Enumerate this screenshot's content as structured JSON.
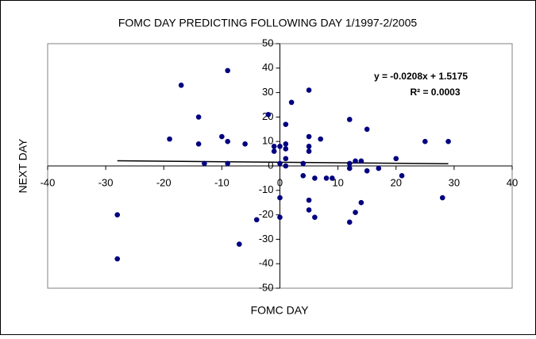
{
  "chart_data": {
    "type": "scatter",
    "title": "FOMC DAY PREDICTING FOLLOWING DAY 1/1997-2/2005",
    "x_label": "FOMC DAY",
    "y_label": "NEXT DAY",
    "annotations": [
      "y = -0.0208x + 1.5175",
      "R² = 0.0003"
    ],
    "color": "#000080",
    "xlim": [
      -40,
      40
    ],
    "xticks": [
      -40,
      -30,
      -20,
      -10,
      0,
      10,
      20,
      30,
      40
    ],
    "ylim": [
      -50,
      50
    ],
    "yticks": [
      -50,
      -40,
      -30,
      -20,
      -10,
      0,
      10,
      20,
      30,
      40,
      50
    ],
    "x": [
      -17,
      -9,
      -14,
      -19,
      -14,
      -13,
      -10,
      -9,
      -9,
      -6,
      -2,
      2,
      5,
      1,
      5,
      7,
      5,
      5,
      -1,
      -1,
      0,
      1,
      1,
      1,
      1,
      0,
      4,
      12,
      15,
      13,
      14,
      12,
      12,
      15,
      17,
      20,
      25,
      29,
      21,
      28,
      8,
      9,
      6,
      4,
      0,
      0,
      5,
      5,
      6,
      -4,
      -7,
      12,
      13,
      14,
      -28,
      -28
    ],
    "y": [
      33,
      39,
      20,
      11,
      9,
      1,
      12,
      10,
      1,
      9,
      21,
      26,
      31,
      17,
      12,
      11,
      8,
      6,
      8,
      6,
      8,
      9,
      7,
      3,
      0,
      1,
      1,
      19,
      15,
      2,
      2,
      1,
      -1,
      -2,
      -1,
      3,
      10,
      10,
      -4,
      -13,
      -5,
      -5,
      -5,
      -4,
      -13,
      -21,
      -14,
      -18,
      -21,
      -22,
      -32,
      -23,
      -19,
      -15,
      -20,
      -38
    ],
    "trendline": {
      "x": [
        -28,
        29
      ],
      "y": [
        2.1,
        0.9
      ]
    }
  }
}
